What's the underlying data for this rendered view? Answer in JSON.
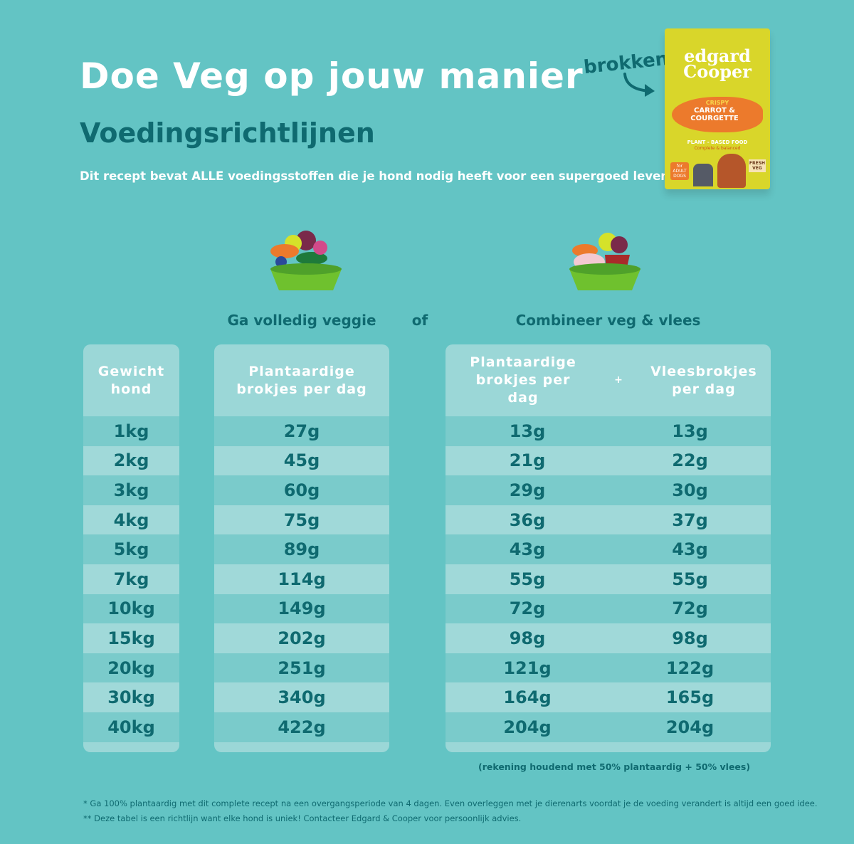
{
  "header": {
    "title": "Doe Veg op jouw manier",
    "subtitle": "Voedingsrichtlijnen",
    "intro": "Dit recept bevat ALLE voedingsstoffen die je hond nodig heeft voor een supergoed leven"
  },
  "product": {
    "pointer_label": "brokken",
    "brand": "edgard Cooper",
    "tag": "CRISPY",
    "name": "CARROT & COURGETTE",
    "claim": "PLANT - BASED FOOD",
    "claim2": "Complete & balanced",
    "badge": "for ADULT DOGS",
    "badge2": "FRESH VEG",
    "color": "#d9d62a"
  },
  "options": {
    "veggie_label": "Ga volledig veggie",
    "or_label": "of",
    "combo_label": "Combineer veg & vlees"
  },
  "table": {
    "weight_header": "Gewicht hond",
    "veggie_header": "Plantaardige brokjes per dag",
    "combo_plant_header": "Plantaardige brokjes per dag",
    "plus": "+",
    "combo_meat_header": "Vleesbrokjes per dag",
    "rows": [
      {
        "weight": "1kg",
        "veggie": "27g",
        "plant": "13g",
        "meat": "13g"
      },
      {
        "weight": "2kg",
        "veggie": "45g",
        "plant": "21g",
        "meat": "22g"
      },
      {
        "weight": "3kg",
        "veggie": "60g",
        "plant": "29g",
        "meat": "30g"
      },
      {
        "weight": "4kg",
        "veggie": "75g",
        "plant": "36g",
        "meat": "37g"
      },
      {
        "weight": "5kg",
        "veggie": "89g",
        "plant": "43g",
        "meat": "43g"
      },
      {
        "weight": "7kg",
        "veggie": "114g",
        "plant": "55g",
        "meat": "55g"
      },
      {
        "weight": "10kg",
        "veggie": "149g",
        "plant": "72g",
        "meat": "72g"
      },
      {
        "weight": "15kg",
        "veggie": "202g",
        "plant": "98g",
        "meat": "98g"
      },
      {
        "weight": "20kg",
        "veggie": "251g",
        "plant": "121g",
        "meat": "122g"
      },
      {
        "weight": "30kg",
        "veggie": "340g",
        "plant": "164g",
        "meat": "165g"
      },
      {
        "weight": "40kg",
        "veggie": "422g",
        "plant": "204g",
        "meat": "204g"
      }
    ],
    "combo_note": "(rekening houdend met 50% plantaardig + 50% vlees)"
  },
  "footnotes": [
    "* Ga 100% plantaardig met dit complete recept na een overgangsperiode van 4 dagen. Even overleggen met je dierenarts voordat je de voeding verandert is altijd een goed idee.",
    "** Deze tabel is een richtlijn want elke hond is uniek! Contacteer Edgard & Cooper voor persoonlijk advies."
  ],
  "colors": {
    "background": "#63c4c4",
    "text_dark": "#0f6a70",
    "panel": "#9bd7d7",
    "row_a": "#7acbcb",
    "row_b": "#a0d9d9"
  }
}
